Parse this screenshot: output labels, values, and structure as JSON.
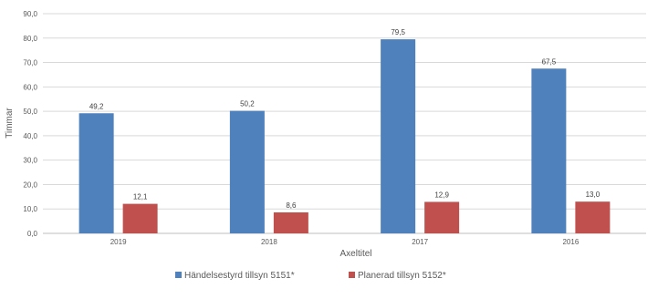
{
  "chart_data": {
    "type": "bar",
    "categories": [
      "2019",
      "2018",
      "2017",
      "2016"
    ],
    "series": [
      {
        "name": "Händelsestyrd tillsyn 5151*",
        "values": [
          49.2,
          50.2,
          79.5,
          67.5
        ],
        "labels": [
          "49,2",
          "50,2",
          "79,5",
          "67,5"
        ],
        "color": "#4f81bd"
      },
      {
        "name": "Planerad tillsyn 5152*",
        "values": [
          12.1,
          8.6,
          12.9,
          13.0
        ],
        "labels": [
          "12,1",
          "8,6",
          "12,9",
          "13,0"
        ],
        "color": "#c0504d"
      }
    ],
    "xlabel": "Axeltitel",
    "ylabel": "Timmar",
    "ylim": [
      0,
      90
    ],
    "yticks": [
      0,
      10,
      20,
      30,
      40,
      50,
      60,
      70,
      80,
      90
    ],
    "ytick_labels": [
      "0,0",
      "10,0",
      "20,0",
      "30,0",
      "40,0",
      "50,0",
      "60,0",
      "70,0",
      "80,0",
      "90,0"
    ],
    "grid": true,
    "legend_position": "bottom"
  }
}
